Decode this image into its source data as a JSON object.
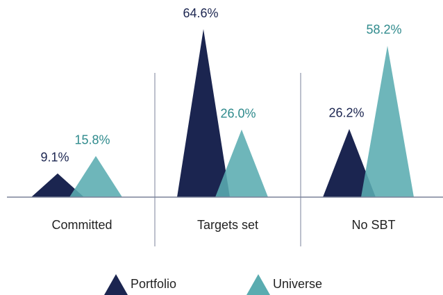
{
  "chart_data": {
    "type": "triangle",
    "categories": [
      "Committed",
      "Targets set",
      "No SBT"
    ],
    "series": [
      {
        "name": "Portfolio",
        "color": "#1b2550",
        "values": [
          9.1,
          64.6,
          26.2
        ],
        "value_labels": [
          "9.1%",
          "64.6%",
          "26.2%"
        ]
      },
      {
        "name": "Universe",
        "color": "#5aacb0",
        "values": [
          15.8,
          26.0,
          58.2
        ],
        "value_labels": [
          "15.8%",
          "26.0%",
          "58.2%"
        ]
      }
    ],
    "legend": "bottom"
  }
}
